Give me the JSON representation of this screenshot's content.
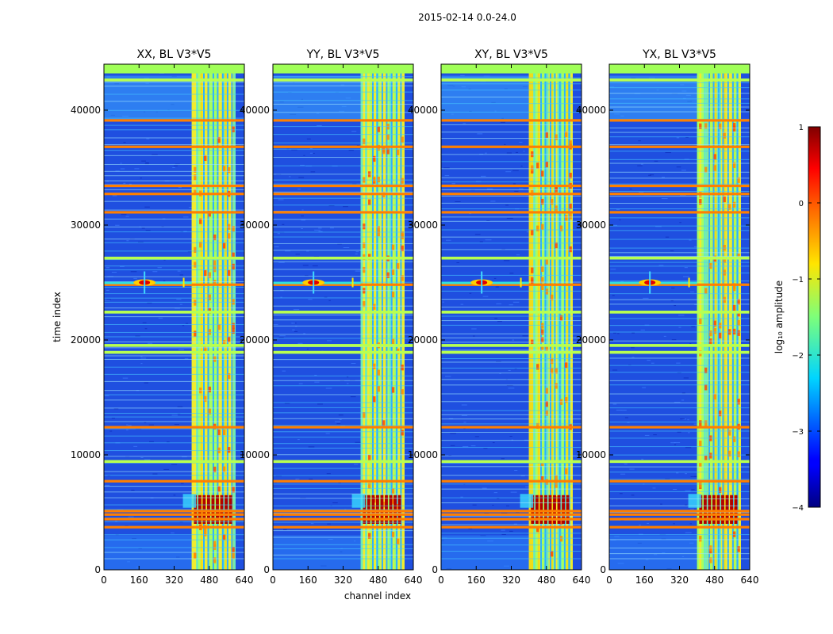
{
  "chart_data": {
    "type": "heatmap",
    "suptitle": "2015-02-14 0.0-24.0",
    "xlabel": "channel index",
    "ylabel": "time index",
    "xlim": [
      0,
      640
    ],
    "ylim": [
      0,
      44000
    ],
    "xticks": [
      "0",
      "160",
      "320",
      "480",
      "640"
    ],
    "yticks": [
      "0",
      "10000",
      "20000",
      "30000",
      "40000"
    ],
    "panels": [
      {
        "title": "XX, BL V3*V5"
      },
      {
        "title": "YY, BL V3*V5"
      },
      {
        "title": "XY, BL V3*V5"
      },
      {
        "title": "YX, BL V3*V5"
      }
    ],
    "colorbar": {
      "label": "log₁₀ amplitude",
      "range": [
        -4,
        1
      ],
      "ticks": [
        "1",
        "0",
        "−1",
        "−2",
        "−3",
        "−4"
      ],
      "colormap": "jet"
    },
    "features": {
      "rfi_channel_band": [
        400,
        600
      ],
      "rfi_columns": [
        415,
        440,
        462,
        482,
        505,
        525,
        548,
        570,
        590
      ],
      "hot_time_band": [
        4000,
        6500
      ],
      "source_blob": {
        "channel": 185,
        "time": 25000
      },
      "strong_rows": [
        3600,
        4300,
        4700,
        5000,
        7600,
        12300,
        24700,
        31000,
        32600,
        33300,
        36700,
        39000,
        43500
      ],
      "bright_rows": [
        9300,
        18800,
        19400,
        22300,
        27000,
        42500
      ]
    },
    "background_color": "#1f4fe0"
  }
}
